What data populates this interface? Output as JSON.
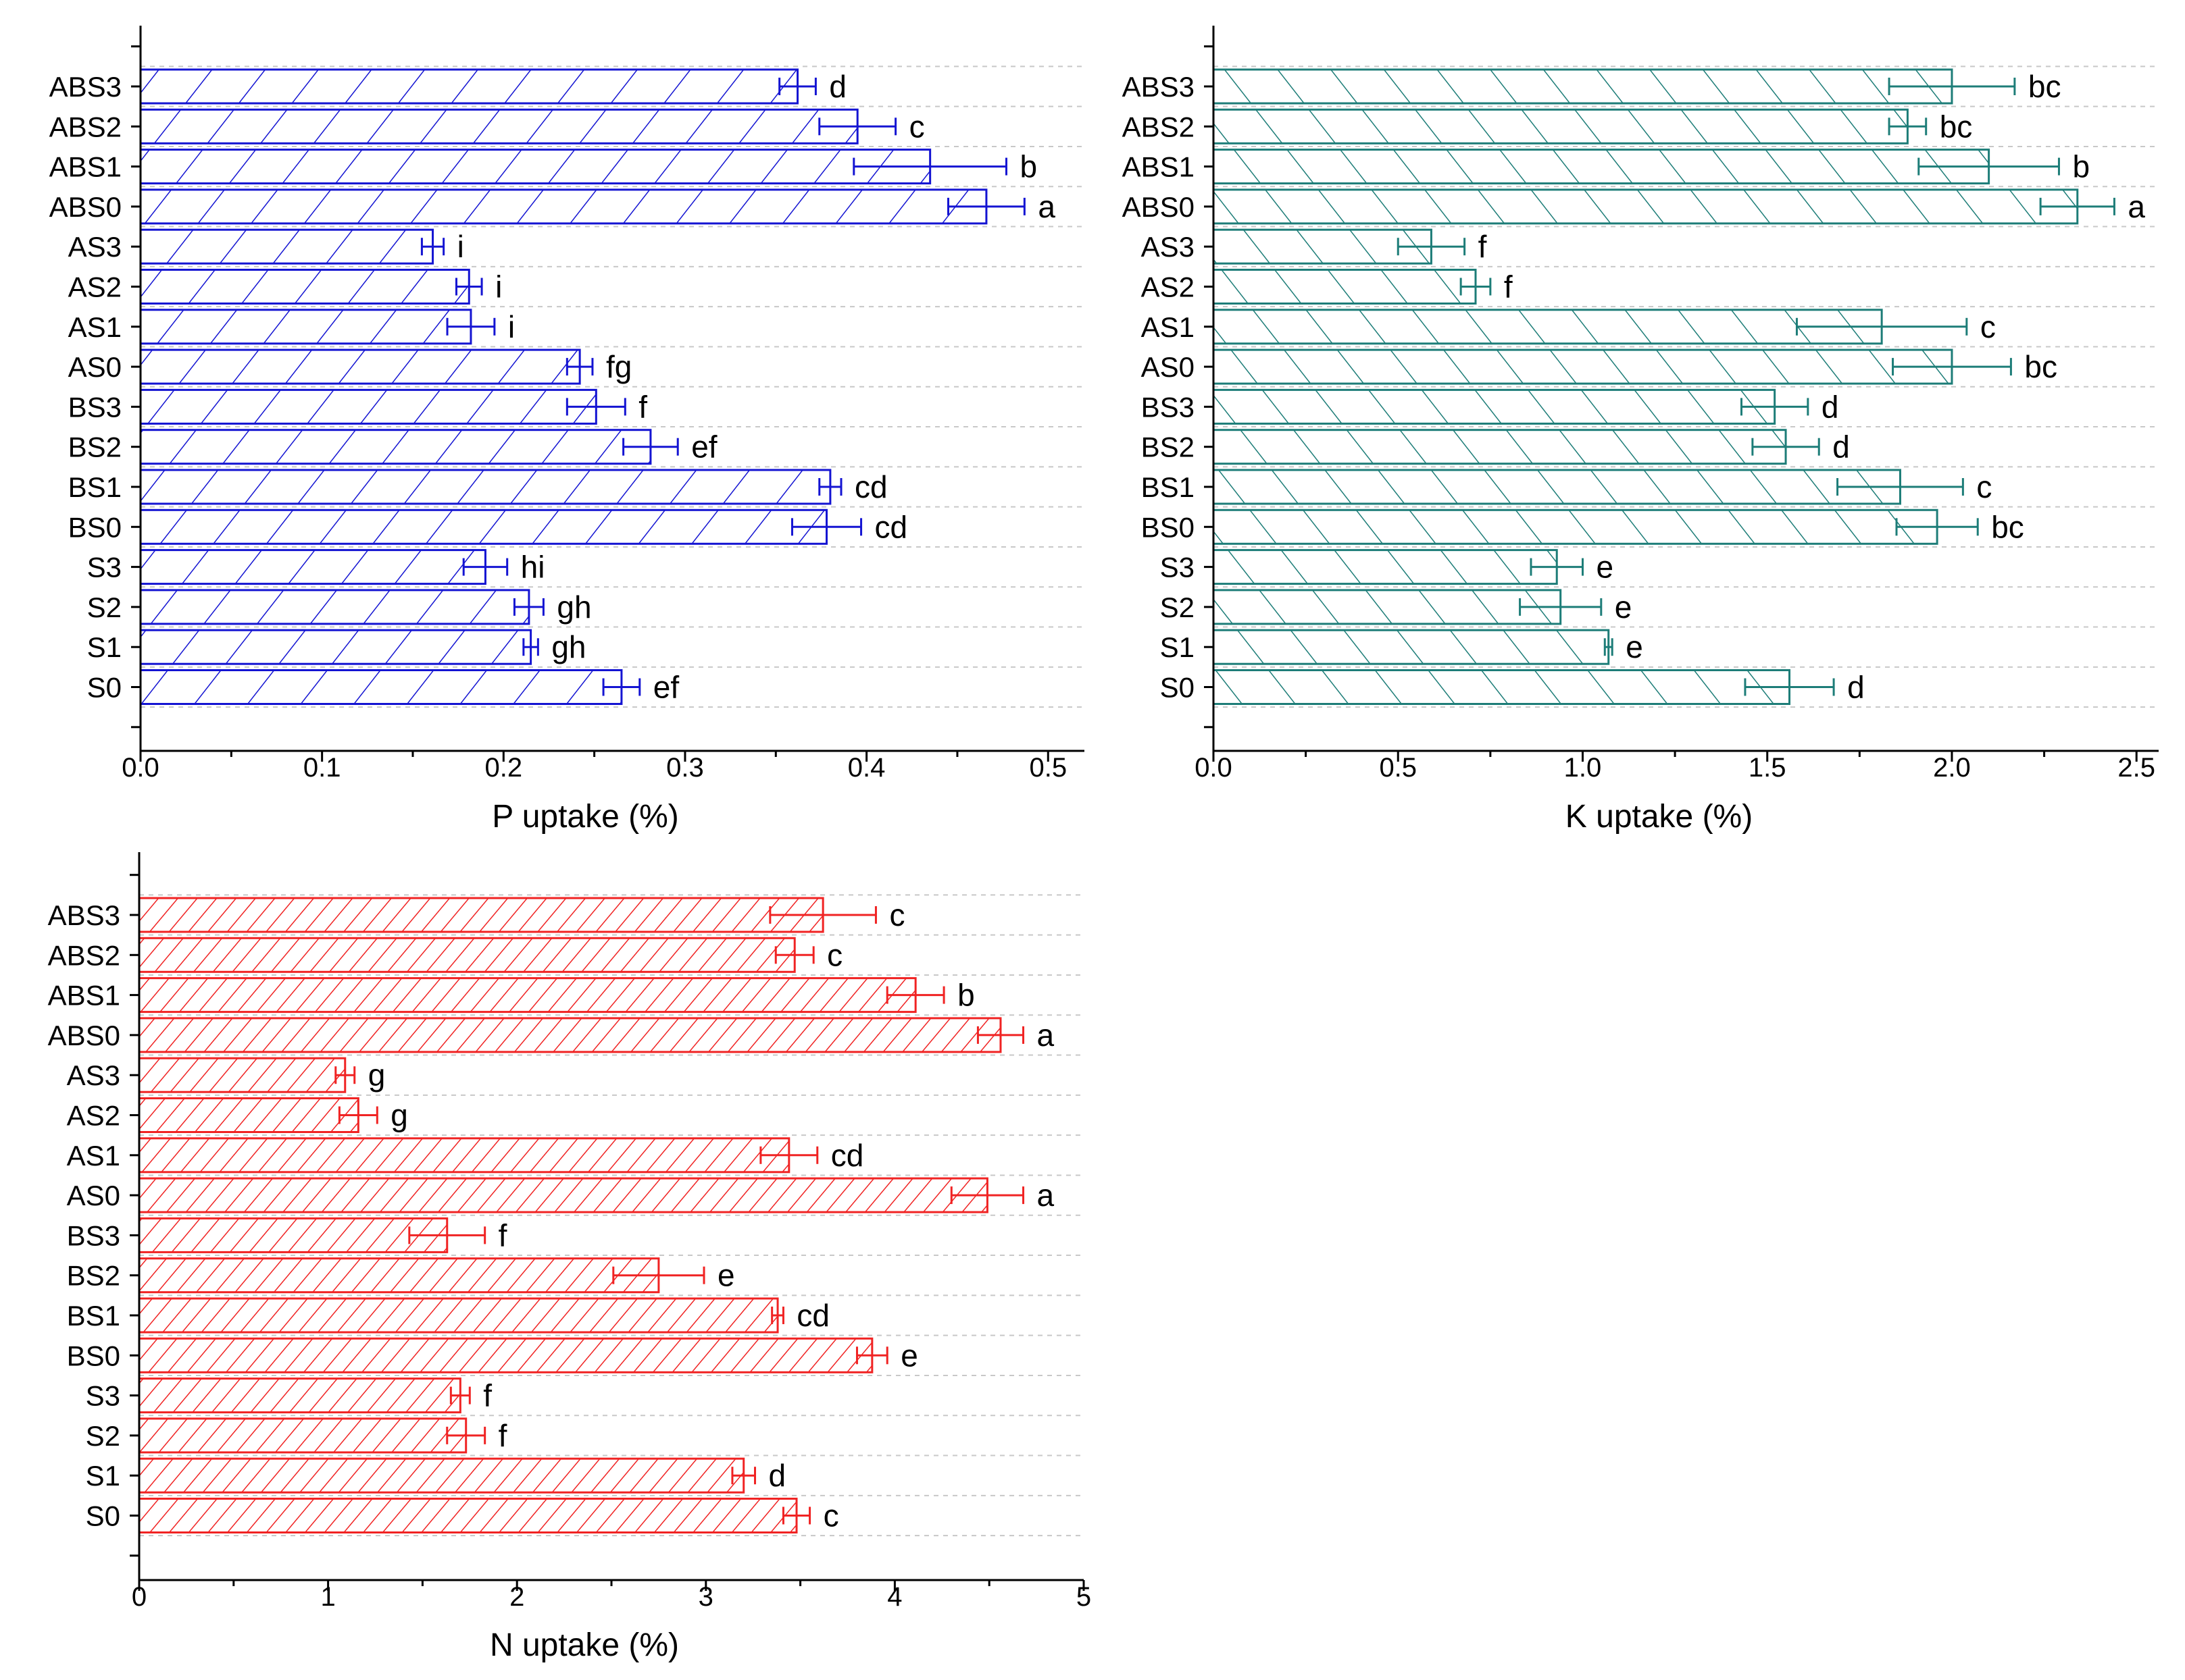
{
  "chart_data": [
    {
      "type": "bar",
      "orientation": "horizontal",
      "name": "P",
      "color": "#1414d2",
      "hatch": "forward-slash",
      "categories": [
        "ABS3",
        "ABS2",
        "ABS1",
        "ABS0",
        "AS3",
        "AS2",
        "AS1",
        "AS0",
        "BS3",
        "BS2",
        "BS1",
        "BS0",
        "S3",
        "S2",
        "S1",
        "S0"
      ],
      "values": [
        0.362,
        0.395,
        0.435,
        0.466,
        0.161,
        0.181,
        0.182,
        0.242,
        0.251,
        0.281,
        0.38,
        0.378,
        0.19,
        0.214,
        0.215,
        0.265
      ],
      "errors": [
        0.01,
        0.021,
        0.042,
        0.021,
        0.006,
        0.007,
        0.013,
        0.007,
        0.016,
        0.015,
        0.006,
        0.019,
        0.012,
        0.008,
        0.004,
        0.01
      ],
      "labels": [
        "d",
        "c",
        "b",
        "a",
        "i",
        "i",
        "i",
        "fg",
        "f",
        "ef",
        "cd",
        "cd",
        "hi",
        "gh",
        "gh",
        "ef"
      ],
      "xlabel": "P uptake (%)",
      "xlim": [
        0,
        0.52
      ],
      "xticks": [
        "0.0",
        "0.1",
        "0.2",
        "0.3",
        "0.4",
        "0.5"
      ],
      "grid": "horizontal-dashed"
    },
    {
      "type": "bar",
      "orientation": "horizontal",
      "name": "K",
      "color": "#1d7d78",
      "hatch": "back-slash",
      "categories": [
        "ABS3",
        "ABS2",
        "ABS1",
        "ABS0",
        "AS3",
        "AS2",
        "AS1",
        "AS0",
        "BS3",
        "BS2",
        "BS1",
        "BS0",
        "S3",
        "S2",
        "S1",
        "S0"
      ],
      "values": [
        2.0,
        1.88,
        2.1,
        2.34,
        0.59,
        0.71,
        1.81,
        2.0,
        1.52,
        1.55,
        1.86,
        1.96,
        0.93,
        0.94,
        1.07,
        1.56
      ],
      "errors": [
        0.17,
        0.05,
        0.19,
        0.1,
        0.09,
        0.04,
        0.23,
        0.16,
        0.09,
        0.09,
        0.17,
        0.11,
        0.07,
        0.11,
        0.01,
        0.12
      ],
      "labels": [
        "bc",
        "bc",
        "b",
        "a",
        "f",
        "f",
        "c",
        "bc",
        "d",
        "d",
        "c",
        "bc",
        "e",
        "e",
        "e",
        "d"
      ],
      "xlabel": "K uptake (%)",
      "xlim": [
        0,
        2.56
      ],
      "xticks": [
        "0.0",
        "0.5",
        "1.0",
        "1.5",
        "2.0",
        "2.5"
      ],
      "grid": "horizontal-dashed"
    },
    {
      "type": "bar",
      "orientation": "horizontal",
      "name": "N",
      "color": "#f02323",
      "hatch": "forward-slash-dense",
      "categories": [
        "ABS3",
        "ABS2",
        "ABS1",
        "ABS0",
        "AS3",
        "AS2",
        "AS1",
        "AS0",
        "BS3",
        "BS2",
        "BS1",
        "BS0",
        "S3",
        "S2",
        "S1",
        "S0"
      ],
      "values": [
        3.62,
        3.47,
        4.11,
        4.56,
        1.09,
        1.16,
        3.44,
        4.49,
        1.63,
        2.75,
        3.38,
        3.88,
        1.7,
        1.73,
        3.2,
        3.48
      ],
      "errors": [
        0.28,
        0.1,
        0.15,
        0.12,
        0.05,
        0.1,
        0.15,
        0.19,
        0.2,
        0.24,
        0.03,
        0.08,
        0.05,
        0.1,
        0.06,
        0.07
      ],
      "labels": [
        "c",
        "c",
        "b",
        "a",
        "g",
        "g",
        "cd",
        "a",
        "f",
        "e",
        "cd",
        "e",
        "f",
        "f",
        "d",
        "c"
      ],
      "xlabel": "N uptake (%)",
      "xlim": [
        0,
        5.0
      ],
      "xticks": [
        "0",
        "1",
        "2",
        "3",
        "4",
        "5"
      ],
      "grid": "horizontal-dashed"
    }
  ]
}
